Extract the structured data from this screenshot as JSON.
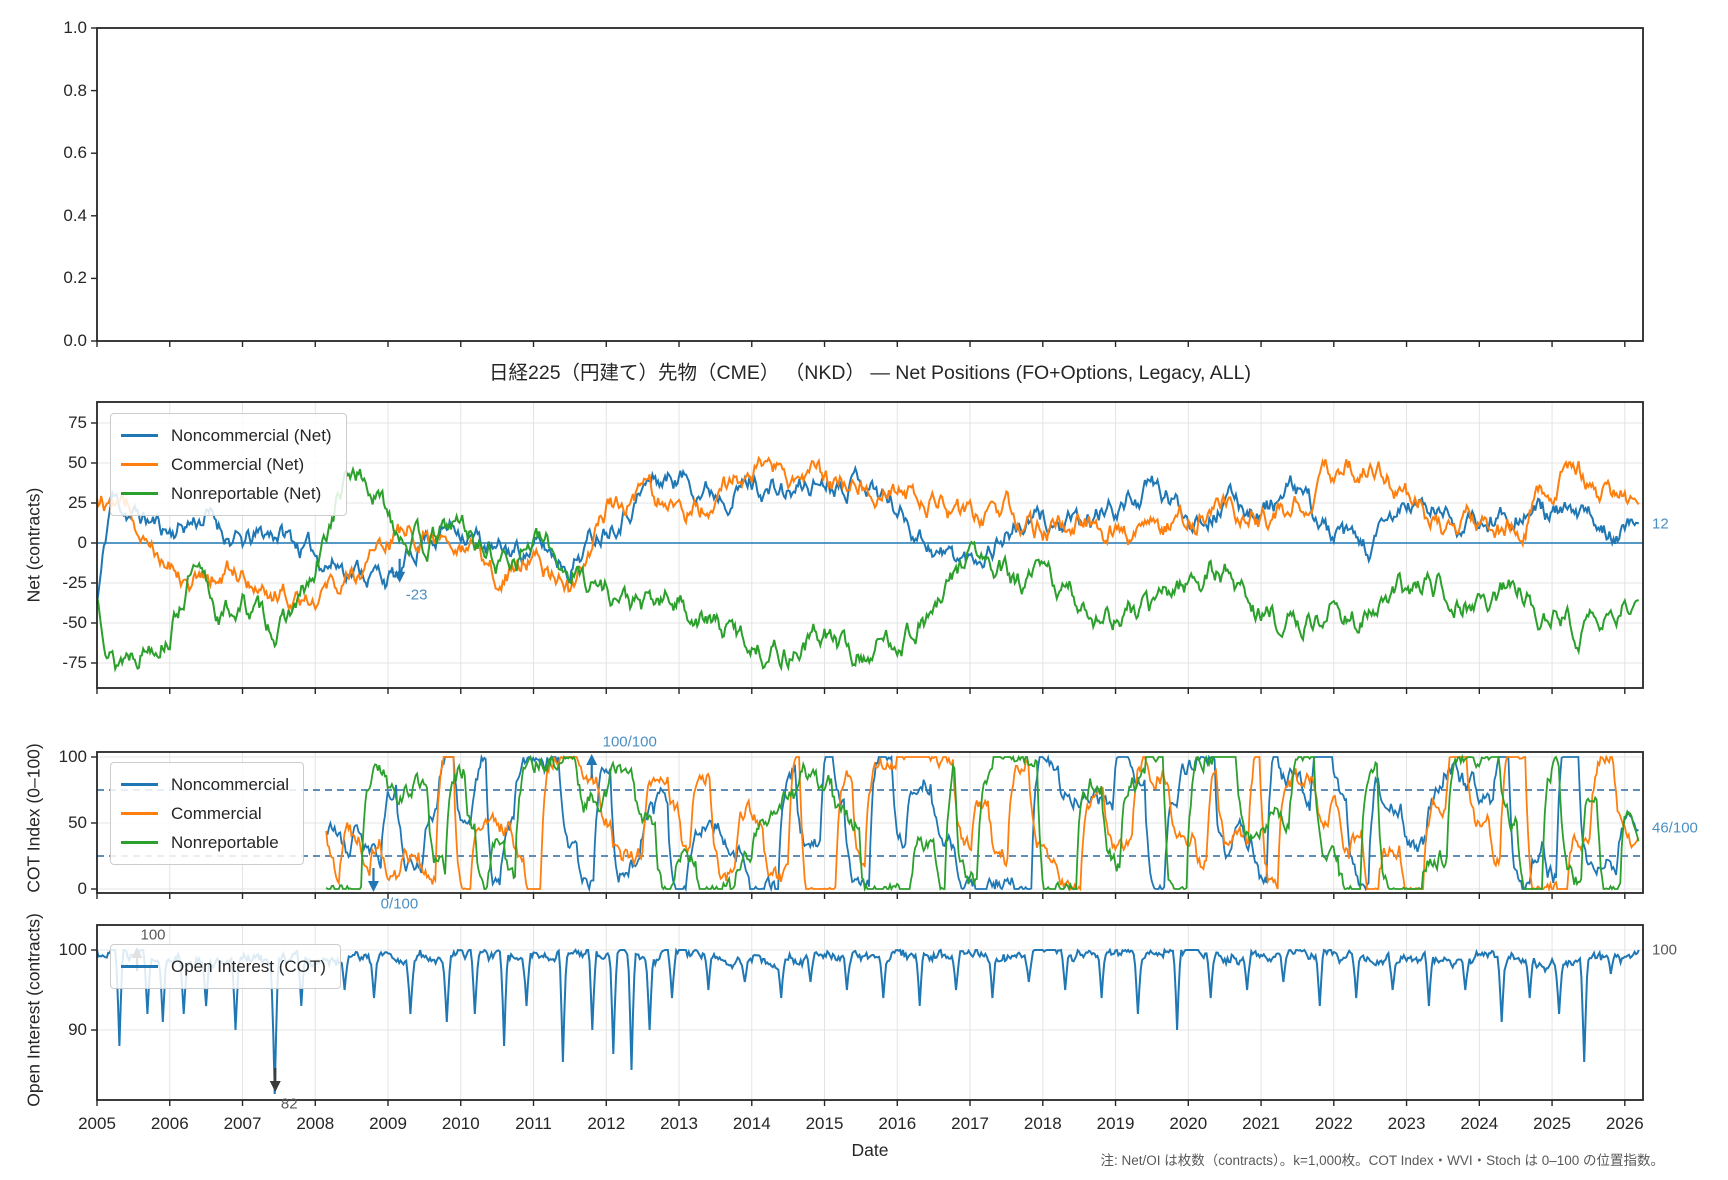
{
  "figure": {
    "title": "日経225（円建て）先物（CME） （NKD） — Net Positions (FO+Options, Legacy, ALL)",
    "xlabel": "Date",
    "note": "注: Net/OI は枚数（contracts）。k=1,000枚。COT Index・WVI・Stoch は 0–100 の位置指数。",
    "background": "#ffffff",
    "grid_color": "#e4e4e4",
    "spine_color": "#262626"
  },
  "empty_panel": {
    "yticks": [
      "1.0",
      "0.8",
      "0.6",
      "0.4",
      "0.2",
      "0.0"
    ]
  },
  "x_axis": {
    "label": "Date",
    "ticks": [
      "2005",
      "2006",
      "2007",
      "2008",
      "2009",
      "2010",
      "2011",
      "2012",
      "2013",
      "2014",
      "2015",
      "2016",
      "2017",
      "2018",
      "2019",
      "2020",
      "2021",
      "2022",
      "2023",
      "2024",
      "2025",
      "2026"
    ]
  },
  "chart_data": [
    {
      "type": "line",
      "title": "日経225（円建て）先物（CME） （NKD） — Net Positions (FO+Options, Legacy, ALL)",
      "ylabel": "Net (contracts)",
      "x_range": [
        2005.0,
        2026.2
      ],
      "ylim": [
        -90,
        88
      ],
      "yticks": [
        75,
        50,
        25,
        0,
        -25,
        -50,
        -75
      ],
      "zero_line": 0,
      "legend_position": "upper left",
      "grid": true,
      "series": [
        {
          "name": "Noncommercial (Net)",
          "color": "#1f77b4",
          "seed": 11,
          "sigma": 5.0,
          "last": 12,
          "anchors": [
            [
              2005,
              -38
            ],
            [
              2005.2,
              28
            ],
            [
              2005.5,
              18
            ],
            [
              2006,
              8
            ],
            [
              2006.5,
              18
            ],
            [
              2007,
              -2
            ],
            [
              2007.5,
              8
            ],
            [
              2008,
              -8
            ],
            [
              2008.6,
              -16
            ],
            [
              2009.16,
              -23
            ],
            [
              2009.5,
              6
            ],
            [
              2010,
              12
            ],
            [
              2010.5,
              -8
            ],
            [
              2011,
              -2
            ],
            [
              2011.5,
              -12
            ],
            [
              2012,
              14
            ],
            [
              2012.6,
              38
            ],
            [
              2013,
              42
            ],
            [
              2013.5,
              34
            ],
            [
              2014,
              38
            ],
            [
              2014.5,
              30
            ],
            [
              2015,
              40
            ],
            [
              2015.5,
              44
            ],
            [
              2016,
              22
            ],
            [
              2016.6,
              -6
            ],
            [
              2017,
              -12
            ],
            [
              2017.5,
              8
            ],
            [
              2018,
              14
            ],
            [
              2018.5,
              8
            ],
            [
              2019,
              22
            ],
            [
              2019.5,
              34
            ],
            [
              2020,
              18
            ],
            [
              2020.5,
              26
            ],
            [
              2021,
              22
            ],
            [
              2021.5,
              32
            ],
            [
              2022,
              2
            ],
            [
              2022.5,
              -6
            ],
            [
              2023,
              24
            ],
            [
              2023.5,
              18
            ],
            [
              2024,
              8
            ],
            [
              2024.5,
              24
            ],
            [
              2025,
              18
            ],
            [
              2025.5,
              12
            ],
            [
              2026.2,
              12
            ]
          ]
        },
        {
          "name": "Commercial (Net)",
          "color": "#ff7f0e",
          "seed": 12,
          "sigma": 5.2,
          "last": 24,
          "anchors": [
            [
              2005,
              30
            ],
            [
              2005.5,
              18
            ],
            [
              2006,
              -8
            ],
            [
              2006.5,
              -24
            ],
            [
              2007,
              -18
            ],
            [
              2007.5,
              -30
            ],
            [
              2008,
              -28
            ],
            [
              2008.5,
              -22
            ],
            [
              2009,
              2
            ],
            [
              2009.5,
              10
            ],
            [
              2010,
              -8
            ],
            [
              2010.6,
              -20
            ],
            [
              2011,
              -4
            ],
            [
              2011.5,
              -32
            ],
            [
              2012,
              22
            ],
            [
              2012.5,
              32
            ],
            [
              2013,
              18
            ],
            [
              2013.5,
              26
            ],
            [
              2014,
              44
            ],
            [
              2014.4,
              48
            ],
            [
              2015,
              34
            ],
            [
              2015.5,
              42
            ],
            [
              2016,
              36
            ],
            [
              2016.5,
              28
            ],
            [
              2017,
              14
            ],
            [
              2017.5,
              22
            ],
            [
              2018,
              8
            ],
            [
              2018.5,
              16
            ],
            [
              2019,
              8
            ],
            [
              2019.5,
              4
            ],
            [
              2020,
              16
            ],
            [
              2020.5,
              22
            ],
            [
              2021,
              12
            ],
            [
              2021.7,
              30
            ],
            [
              2022,
              44
            ],
            [
              2022.3,
              50
            ],
            [
              2022.7,
              46
            ],
            [
              2023,
              28
            ],
            [
              2023.5,
              8
            ],
            [
              2024,
              14
            ],
            [
              2024.5,
              8
            ],
            [
              2025,
              38
            ],
            [
              2025.3,
              46
            ],
            [
              2025.7,
              32
            ],
            [
              2026.2,
              24
            ]
          ]
        },
        {
          "name": "Nonreportable (Net)",
          "color": "#2ca02c",
          "seed": 13,
          "sigma": 5.5,
          "last": -36,
          "anchors": [
            [
              2005,
              -34
            ],
            [
              2005.25,
              -72
            ],
            [
              2005.6,
              -62
            ],
            [
              2006,
              -52
            ],
            [
              2006.3,
              -18
            ],
            [
              2006.7,
              -46
            ],
            [
              2007,
              -38
            ],
            [
              2007.5,
              -54
            ],
            [
              2008,
              -24
            ],
            [
              2008.3,
              26
            ],
            [
              2008.55,
              46
            ],
            [
              2009,
              18
            ],
            [
              2009.5,
              -2
            ],
            [
              2010,
              12
            ],
            [
              2010.5,
              -12
            ],
            [
              2011,
              2
            ],
            [
              2011.5,
              -16
            ],
            [
              2012,
              -28
            ],
            [
              2012.5,
              -42
            ],
            [
              2013,
              -36
            ],
            [
              2013.5,
              -52
            ],
            [
              2014,
              -62
            ],
            [
              2014.5,
              -68
            ],
            [
              2015,
              -56
            ],
            [
              2015.4,
              -72
            ],
            [
              2016,
              -58
            ],
            [
              2016.6,
              -40
            ],
            [
              2017,
              -4
            ],
            [
              2017.3,
              -18
            ],
            [
              2017.7,
              -28
            ],
            [
              2018,
              -22
            ],
            [
              2018.5,
              -38
            ],
            [
              2019,
              -46
            ],
            [
              2019.5,
              -42
            ],
            [
              2020,
              -22
            ],
            [
              2020.5,
              -18
            ],
            [
              2021,
              -44
            ],
            [
              2021.5,
              -52
            ],
            [
              2022,
              -42
            ],
            [
              2022.5,
              -46
            ],
            [
              2023,
              -32
            ],
            [
              2023.5,
              -26
            ],
            [
              2024,
              -36
            ],
            [
              2024.5,
              -30
            ],
            [
              2025,
              -44
            ],
            [
              2025.5,
              -56
            ],
            [
              2026.2,
              -36
            ]
          ]
        }
      ],
      "annotations": [
        {
          "text": "-23",
          "x": 2009.16,
          "y": -23,
          "dir": "down",
          "text_dx": 17,
          "color_text": "#4a8fc4",
          "color_arrow": "#1f77b4"
        },
        {
          "text": "12",
          "x": 2026.2,
          "y": 12,
          "side": "right",
          "color_text": "#4a8fc4"
        }
      ]
    },
    {
      "type": "line",
      "ylabel": "COT Index (0–100)",
      "x_range": [
        2008.15,
        2026.2
      ],
      "ylim": [
        -3,
        104
      ],
      "yticks": [
        100,
        50,
        0
      ],
      "dashed_levels": [
        75,
        25
      ],
      "dashed_color": "#2a6aa0",
      "legend_position": "upper left",
      "grid": true,
      "series": [
        {
          "name": "Noncommercial",
          "color": "#1f77b4",
          "seed": 21,
          "last": 46
        },
        {
          "name": "Commercial",
          "color": "#ff7f0e",
          "seed": 22,
          "last": 40
        },
        {
          "name": "Nonreportable",
          "color": "#2ca02c",
          "seed": 23,
          "last": 35
        }
      ],
      "annotations": [
        {
          "text": "100/100",
          "x": 2011.8,
          "y": 100,
          "dir": "up",
          "text_dx": 38,
          "color_text": "#4a8fc4",
          "color_arrow": "#1f77b4"
        },
        {
          "text": "0/100",
          "x": 2008.8,
          "y": 0,
          "dir": "down",
          "text_dx": 26,
          "color_text": "#4a8fc4",
          "color_arrow": "#1f77b4"
        },
        {
          "text": "46/100",
          "x": 2026.2,
          "y": 46,
          "side": "right",
          "color_text": "#4a8fc4"
        }
      ]
    },
    {
      "type": "line",
      "ylabel": "Open Interest (contracts)",
      "x_range": [
        2005.0,
        2026.2
      ],
      "ylim": [
        81,
        103
      ],
      "yticks": [
        100,
        90
      ],
      "legend_position": "upper left",
      "grid": true,
      "series": [
        {
          "name": "Open Interest (COT)",
          "color": "#1f77b4",
          "seed": 31,
          "base": 99.1,
          "first": 100,
          "last": 100,
          "dips": [
            [
              2005.3,
              88
            ],
            [
              2005.7,
              92
            ],
            [
              2005.9,
              91
            ],
            [
              2006.2,
              92
            ],
            [
              2006.5,
              93
            ],
            [
              2006.9,
              90
            ],
            [
              2007.45,
              82
            ],
            [
              2007.8,
              93
            ],
            [
              2008.4,
              95
            ],
            [
              2008.8,
              94
            ],
            [
              2009.3,
              92
            ],
            [
              2009.8,
              91
            ],
            [
              2010.2,
              92
            ],
            [
              2010.6,
              88
            ],
            [
              2010.9,
              93
            ],
            [
              2011.4,
              86
            ],
            [
              2011.8,
              90
            ],
            [
              2012.1,
              87
            ],
            [
              2012.35,
              85
            ],
            [
              2012.6,
              90
            ],
            [
              2012.9,
              94
            ],
            [
              2013.4,
              95
            ],
            [
              2013.9,
              96
            ],
            [
              2014.4,
              94
            ],
            [
              2014.8,
              96
            ],
            [
              2015.3,
              95
            ],
            [
              2015.8,
              94
            ],
            [
              2016.3,
              93
            ],
            [
              2016.8,
              95
            ],
            [
              2017.3,
              94
            ],
            [
              2017.8,
              96
            ],
            [
              2018.3,
              95
            ],
            [
              2018.8,
              94
            ],
            [
              2019.3,
              92
            ],
            [
              2019.85,
              90
            ],
            [
              2020.3,
              94
            ],
            [
              2020.8,
              95
            ],
            [
              2021.3,
              96
            ],
            [
              2021.8,
              93
            ],
            [
              2022.3,
              94
            ],
            [
              2022.8,
              95
            ],
            [
              2023.3,
              93
            ],
            [
              2023.8,
              95
            ],
            [
              2024.3,
              91
            ],
            [
              2024.7,
              94
            ],
            [
              2025.1,
              92
            ],
            [
              2025.45,
              86
            ],
            [
              2025.8,
              97
            ]
          ]
        }
      ],
      "annotations": [
        {
          "text": "100",
          "x": 2005.55,
          "y": 100,
          "dir": "up",
          "text_dx": 16,
          "color_text": "#595959",
          "color_arrow": "#3a3a3a"
        },
        {
          "text": "82",
          "x": 2007.45,
          "y": 82,
          "dir": "down",
          "text_dx": 14,
          "color_text": "#595959",
          "color_arrow": "#3a3a3a"
        },
        {
          "text": "100",
          "x": 2026.2,
          "y": 100,
          "side": "right",
          "color_text": "#595959"
        }
      ]
    }
  ]
}
